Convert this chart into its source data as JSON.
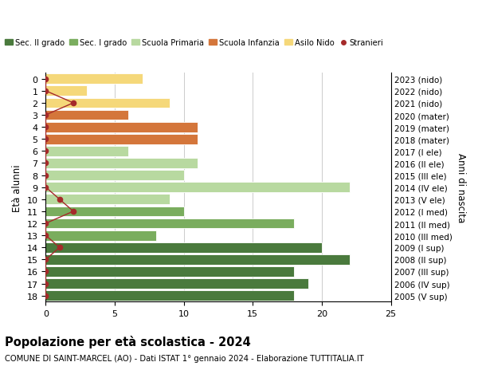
{
  "ages": [
    18,
    17,
    16,
    15,
    14,
    13,
    12,
    11,
    10,
    9,
    8,
    7,
    6,
    5,
    4,
    3,
    2,
    1,
    0
  ],
  "right_labels": [
    "2005 (V sup)",
    "2006 (IV sup)",
    "2007 (III sup)",
    "2008 (II sup)",
    "2009 (I sup)",
    "2010 (III med)",
    "2011 (II med)",
    "2012 (I med)",
    "2013 (V ele)",
    "2014 (IV ele)",
    "2015 (III ele)",
    "2016 (II ele)",
    "2017 (I ele)",
    "2018 (mater)",
    "2019 (mater)",
    "2020 (mater)",
    "2021 (nido)",
    "2022 (nido)",
    "2023 (nido)"
  ],
  "bar_values": [
    18,
    19,
    18,
    22,
    20,
    8,
    18,
    10,
    9,
    22,
    10,
    11,
    6,
    11,
    11,
    6,
    9,
    3,
    7
  ],
  "bar_colors": [
    "#4a7a3d",
    "#4a7a3d",
    "#4a7a3d",
    "#4a7a3d",
    "#4a7a3d",
    "#7aad5e",
    "#7aad5e",
    "#7aad5e",
    "#b8d9a0",
    "#b8d9a0",
    "#b8d9a0",
    "#b8d9a0",
    "#b8d9a0",
    "#d4763b",
    "#d4763b",
    "#d4763b",
    "#f5d87a",
    "#f5d87a",
    "#f5d87a"
  ],
  "stranieri_x": [
    0,
    0,
    0,
    0,
    1,
    0,
    0,
    2,
    1,
    0,
    0,
    0,
    0,
    0,
    0,
    0,
    2,
    0,
    0
  ],
  "stranieri_color": "#a52a2a",
  "ylabel_left": "Età alunni",
  "ylabel_right": "Anni di nascita",
  "title": "Popolazione per età scolastica - 2024",
  "subtitle": "COMUNE DI SAINT-MARCEL (AO) - Dati ISTAT 1° gennaio 2024 - Elaborazione TUTTITALIA.IT",
  "xlim": [
    0,
    25
  ],
  "xticks": [
    0,
    5,
    10,
    15,
    20,
    25
  ],
  "legend_labels": [
    "Sec. II grado",
    "Sec. I grado",
    "Scuola Primaria",
    "Scuola Infanzia",
    "Asilo Nido",
    "Stranieri"
  ],
  "legend_colors": [
    "#4a7a3d",
    "#7aad5e",
    "#b8d9a0",
    "#d4763b",
    "#f5d87a",
    "#a52a2a"
  ],
  "bg_color": "#ffffff",
  "grid_color": "#cccccc"
}
